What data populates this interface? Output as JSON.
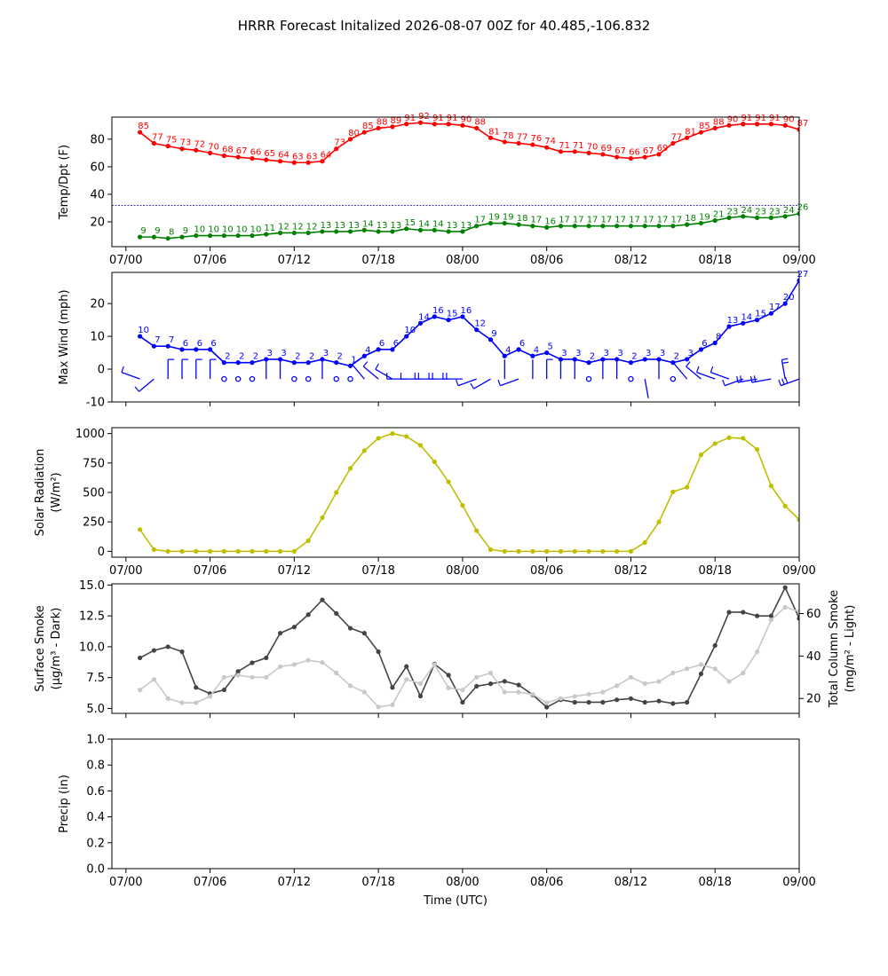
{
  "title": "HRRR Forecast Initalized 2026-08-07 00Z for 40.485,-106.832",
  "chart_data": [
    {
      "type": "line",
      "ylabel": "Temp/Dpt (F)",
      "ylim": [
        2,
        96
      ],
      "yticks": [
        20,
        40,
        60,
        80
      ],
      "x_ticks": [
        "07/00",
        "07/06",
        "07/12",
        "07/18",
        "08/00",
        "08/06",
        "08/12",
        "08/18",
        "09/00"
      ],
      "xlim_hours": [
        -1,
        48
      ],
      "x_hours_start": 1,
      "reference_line": {
        "y": 32,
        "color": "#000080",
        "style": "dashed"
      },
      "series": [
        {
          "color": "#ff0000",
          "values": [
            85,
            77,
            75,
            73,
            72,
            70,
            68,
            67,
            66,
            65,
            64,
            63,
            63,
            64,
            73,
            80,
            85,
            88,
            89,
            91,
            92,
            91,
            91,
            90,
            88,
            81,
            78,
            77,
            76,
            74,
            71,
            71,
            70,
            69,
            67,
            66,
            67,
            69,
            77,
            81,
            85,
            88,
            90,
            91,
            91,
            91,
            90,
            87
          ]
        },
        {
          "color": "#008000",
          "values": [
            9,
            9,
            8,
            9,
            10,
            10,
            10,
            10,
            10,
            11,
            12,
            12,
            12,
            13,
            13,
            13,
            14,
            13,
            13,
            15,
            14,
            14,
            13,
            13,
            17,
            19,
            19,
            18,
            17,
            16,
            17,
            17,
            17,
            17,
            17,
            17,
            17,
            17,
            17,
            18,
            19,
            21,
            23,
            24,
            23,
            23,
            24,
            26
          ]
        }
      ]
    },
    {
      "type": "line",
      "ylabel": "Max Wind (mph)",
      "ylim": [
        -10,
        29.5
      ],
      "yticks": [
        -10,
        0,
        10,
        20
      ],
      "xlim_hours": [
        -1,
        48
      ],
      "x_hours_start": 1,
      "series": [
        {
          "color": "#0000ff",
          "values": [
            10,
            7,
            7,
            6,
            6,
            6,
            2,
            2,
            2,
            3,
            3,
            2,
            2,
            3,
            2,
            1,
            4,
            6,
            6,
            10,
            14,
            16,
            15,
            16,
            12,
            9,
            4,
            6,
            4,
            5,
            3,
            3,
            2,
            3,
            3,
            2,
            3,
            3,
            2,
            3,
            6,
            8,
            13,
            14,
            15,
            17,
            20,
            27
          ]
        }
      ],
      "wind_barbs": {
        "y": -3,
        "color": "#0000ff",
        "direction_deg": [
          290,
          230,
          0,
          0,
          0,
          0,
          0,
          0,
          0,
          0,
          0,
          0,
          0,
          0,
          0,
          0,
          320,
          310,
          300,
          270,
          270,
          270,
          270,
          270,
          250,
          240,
          0,
          250,
          0,
          0,
          0,
          0,
          0,
          0,
          0,
          0,
          170,
          0,
          0,
          320,
          310,
          290,
          290,
          250,
          260,
          260,
          350,
          250
        ]
      }
    },
    {
      "type": "line",
      "ylabel": "Solar Radiation",
      "ylabel2": "(W/m²)",
      "ylim": [
        -50,
        1050
      ],
      "yticks": [
        0,
        250,
        500,
        750,
        1000
      ],
      "x_ticks": [
        "07/00",
        "07/06",
        "07/12",
        "07/18",
        "08/00",
        "08/06",
        "08/12",
        "08/18",
        "09/00"
      ],
      "xlim_hours": [
        -1,
        48
      ],
      "x_hours_start": 1,
      "series": [
        {
          "color": "#bfbf00",
          "values": [
            185,
            15,
            0,
            0,
            0,
            0,
            0,
            0,
            0,
            0,
            0,
            0,
            90,
            285,
            500,
            705,
            855,
            960,
            1000,
            975,
            900,
            760,
            590,
            390,
            175,
            15,
            0,
            0,
            0,
            0,
            0,
            0,
            0,
            0,
            0,
            0,
            75,
            250,
            505,
            545,
            820,
            915,
            965,
            960,
            865,
            555,
            385,
            270
          ]
        }
      ]
    },
    {
      "type": "line",
      "ylabel": "Surface Smoke",
      "ylabel2": "(μg/m³ - Dark)",
      "ylabel_right": "Total Column Smoke",
      "ylabel_right2": "(mg/m² - Light)",
      "ylim": [
        4.6,
        15.1
      ],
      "yticks": [
        5.0,
        7.5,
        10.0,
        12.5,
        15.0
      ],
      "ylim_right": [
        13,
        74
      ],
      "yticks_right": [
        20,
        40,
        60
      ],
      "xlim_hours": [
        -1,
        48
      ],
      "x_hours_start": 1,
      "series": [
        {
          "color": "#444444",
          "values": [
            9.1,
            9.7,
            10.0,
            9.6,
            6.7,
            6.2,
            6.5,
            8.0,
            8.7,
            9.1,
            11.1,
            11.6,
            12.6,
            13.8,
            12.7,
            11.5,
            11.1,
            9.6,
            6.7,
            8.4,
            6.0,
            8.6,
            7.7,
            5.5,
            6.8,
            7.0,
            7.2,
            6.9,
            6.1,
            5.1,
            5.7,
            5.5,
            5.5,
            5.5,
            5.7,
            5.8,
            5.5,
            5.6,
            5.4,
            5.5,
            7.8,
            10.1,
            12.8,
            12.8,
            12.5,
            12.5,
            14.8,
            12.3
          ]
        },
        {
          "color": "#c8c8c8",
          "axis": "right",
          "values": [
            24,
            29,
            20,
            18,
            18,
            21,
            30,
            31,
            30,
            30,
            35,
            36,
            38,
            37,
            32,
            26,
            23,
            16,
            17,
            29,
            27,
            36,
            25,
            24,
            30,
            32,
            23,
            23,
            22,
            18,
            20,
            21,
            22,
            23,
            26,
            30,
            27,
            28,
            32,
            34,
            36,
            34,
            28,
            32,
            42,
            57,
            63,
            61
          ]
        }
      ]
    },
    {
      "type": "line",
      "ylabel": "Precip (in)",
      "xlabel": "Time (UTC)",
      "ylim": [
        0,
        1.0
      ],
      "yticks": [
        0.0,
        0.2,
        0.4,
        0.6,
        0.8,
        1.0
      ],
      "x_ticks": [
        "07/00",
        "07/06",
        "07/12",
        "07/18",
        "08/00",
        "08/06",
        "08/12",
        "08/18",
        "09/00"
      ],
      "xlim_hours": [
        -1,
        48
      ],
      "series": []
    }
  ]
}
